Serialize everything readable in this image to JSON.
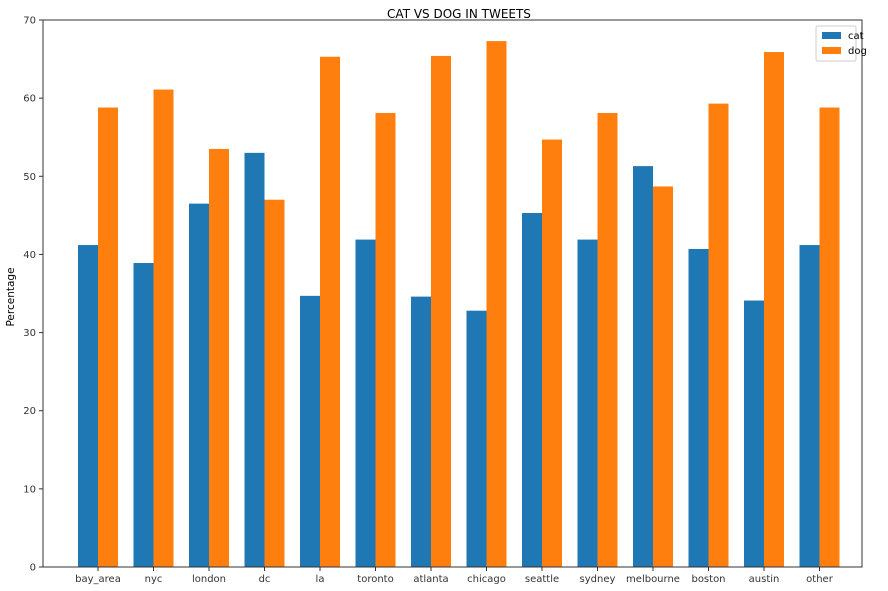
{
  "chart_data": {
    "type": "bar",
    "title": "CAT VS DOG IN TWEETS",
    "xlabel": "",
    "ylabel": "Percentage",
    "ylim": [
      0,
      70
    ],
    "yticks": [
      0,
      10,
      20,
      30,
      40,
      50,
      60,
      70
    ],
    "grid": false,
    "legend_position": "top-right",
    "categories": [
      "bay_area",
      "nyc",
      "london",
      "dc",
      "la",
      "toronto",
      "atlanta",
      "chicago",
      "seattle",
      "sydney",
      "melbourne",
      "boston",
      "austin",
      "other"
    ],
    "series": [
      {
        "name": "cat",
        "color": "#1f77b4",
        "values": [
          41.2,
          38.9,
          46.5,
          53.0,
          34.7,
          41.9,
          34.6,
          32.8,
          45.3,
          41.9,
          51.3,
          40.7,
          34.1,
          41.2
        ]
      },
      {
        "name": "dog",
        "color": "#ff7f0e",
        "values": [
          58.8,
          61.1,
          53.5,
          47.0,
          65.3,
          58.1,
          65.4,
          67.3,
          54.7,
          58.1,
          48.7,
          59.3,
          65.9,
          58.8
        ]
      }
    ]
  }
}
